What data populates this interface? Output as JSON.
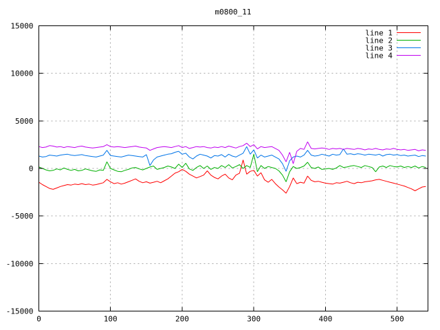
{
  "title": "m0800_11",
  "colors": {
    "background": "#ffffff",
    "border": "#000000",
    "text": "#000000",
    "grid": "#a8a8a8",
    "line1": "#ff0000",
    "line2": "#00b000",
    "line3": "#0074e8",
    "line4": "#c000f0"
  },
  "legend": {
    "position": "top-right",
    "entries": [
      "line 1",
      "line 2",
      "line 3",
      "line 4"
    ]
  },
  "chart_data": {
    "type": "line",
    "title": "m0800_11",
    "xlabel": "",
    "ylabel": "",
    "grid": true,
    "legend_position": "top-right",
    "xlim": [
      0,
      543
    ],
    "ylim": [
      -15000,
      15000
    ],
    "x_ticks": [
      0,
      100,
      200,
      300,
      400,
      500
    ],
    "y_ticks": [
      -15000,
      -10000,
      -5000,
      0,
      5000,
      10000,
      15000
    ],
    "x": [
      0,
      5,
      10,
      15,
      20,
      25,
      30,
      35,
      40,
      45,
      50,
      55,
      60,
      65,
      70,
      75,
      80,
      85,
      90,
      95,
      100,
      105,
      110,
      115,
      120,
      125,
      130,
      135,
      140,
      145,
      150,
      155,
      160,
      165,
      170,
      175,
      180,
      185,
      190,
      195,
      200,
      205,
      210,
      215,
      220,
      225,
      230,
      235,
      240,
      245,
      250,
      255,
      260,
      265,
      270,
      275,
      280,
      285,
      290,
      295,
      300,
      305,
      310,
      315,
      320,
      325,
      330,
      335,
      340,
      345,
      350,
      355,
      360,
      365,
      370,
      375,
      380,
      385,
      390,
      395,
      400,
      405,
      410,
      415,
      420,
      425,
      430,
      435,
      440,
      445,
      450,
      455,
      460,
      465,
      470,
      475,
      480,
      485,
      490,
      495,
      500,
      505,
      510,
      515,
      520,
      525,
      530,
      535,
      540
    ],
    "series": [
      {
        "name": "line 1",
        "color": "#ff0000",
        "values": [
          -1450,
          -1700,
          -1900,
          -2100,
          -2200,
          -2050,
          -1900,
          -1800,
          -1700,
          -1750,
          -1650,
          -1700,
          -1600,
          -1700,
          -1650,
          -1750,
          -1700,
          -1600,
          -1500,
          -1150,
          -1400,
          -1600,
          -1500,
          -1650,
          -1550,
          -1400,
          -1250,
          -1100,
          -1350,
          -1500,
          -1400,
          -1550,
          -1450,
          -1350,
          -1500,
          -1300,
          -1100,
          -800,
          -500,
          -350,
          -100,
          -300,
          -600,
          -800,
          -1000,
          -850,
          -700,
          -250,
          -700,
          -950,
          -1100,
          -800,
          -600,
          -1000,
          -1200,
          -700,
          -500,
          900,
          -600,
          -300,
          -200,
          -800,
          -450,
          -1200,
          -1450,
          -1150,
          -1600,
          -1950,
          -2250,
          -2600,
          -1900,
          -1000,
          -1600,
          -1450,
          -1550,
          -800,
          -1250,
          -1400,
          -1350,
          -1450,
          -1550,
          -1600,
          -1650,
          -1500,
          -1550,
          -1450,
          -1350,
          -1500,
          -1600,
          -1450,
          -1500,
          -1400,
          -1350,
          -1300,
          -1200,
          -1150,
          -1250,
          -1350,
          -1450,
          -1550,
          -1650,
          -1750,
          -1850,
          -2000,
          -2150,
          -2350,
          -2150,
          -1950,
          -1900
        ]
      },
      {
        "name": "line 2",
        "color": "#00b000",
        "values": [
          150,
          0,
          -150,
          -250,
          -200,
          -50,
          -150,
          50,
          -100,
          -200,
          -100,
          -250,
          -200,
          -50,
          -150,
          -250,
          -300,
          -150,
          -200,
          700,
          0,
          -150,
          -300,
          -350,
          -200,
          -100,
          50,
          100,
          -50,
          -150,
          0,
          150,
          250,
          -100,
          0,
          100,
          250,
          150,
          0,
          450,
          100,
          550,
          -50,
          -200,
          100,
          300,
          0,
          250,
          -100,
          100,
          0,
          300,
          100,
          400,
          50,
          200,
          400,
          0,
          300,
          100,
          1500,
          -350,
          300,
          0,
          200,
          100,
          0,
          -250,
          -700,
          -1400,
          -350,
          200,
          0,
          100,
          250,
          650,
          100,
          0,
          150,
          -100,
          -50,
          0,
          -100,
          50,
          300,
          100,
          150,
          250,
          300,
          200,
          100,
          300,
          200,
          100,
          -350,
          150,
          250,
          100,
          300,
          200,
          150,
          250,
          100,
          200,
          100,
          250,
          50,
          200,
          100
        ]
      },
      {
        "name": "line 3",
        "color": "#0074e8",
        "values": [
          1300,
          1200,
          1250,
          1400,
          1350,
          1300,
          1400,
          1450,
          1500,
          1400,
          1350,
          1400,
          1450,
          1350,
          1300,
          1250,
          1200,
          1300,
          1400,
          1900,
          1350,
          1300,
          1250,
          1200,
          1300,
          1400,
          1350,
          1300,
          1250,
          1200,
          1450,
          300,
          900,
          1200,
          1300,
          1400,
          1500,
          1550,
          1700,
          1800,
          1500,
          1600,
          1200,
          1000,
          1300,
          1500,
          1400,
          1300,
          1100,
          1350,
          1300,
          1450,
          1200,
          1500,
          1300,
          1200,
          1400,
          1600,
          2300,
          1500,
          1950,
          1100,
          1400,
          1200,
          1300,
          1400,
          1200,
          1000,
          500,
          -300,
          800,
          1200,
          1300,
          1200,
          1400,
          1900,
          1400,
          1300,
          1350,
          1500,
          1400,
          1300,
          1500,
          1400,
          1450,
          2050,
          1500,
          1550,
          1450,
          1550,
          1500,
          1400,
          1500,
          1450,
          1400,
          1500,
          1300,
          1450,
          1500,
          1400,
          1450,
          1350,
          1400,
          1300,
          1350,
          1400,
          1250,
          1350,
          1300
        ]
      },
      {
        "name": "line 4",
        "color": "#c000f0",
        "values": [
          2300,
          2200,
          2250,
          2400,
          2350,
          2250,
          2300,
          2200,
          2300,
          2250,
          2200,
          2300,
          2350,
          2250,
          2200,
          2150,
          2200,
          2250,
          2300,
          2500,
          2300,
          2250,
          2300,
          2250,
          2200,
          2250,
          2300,
          2350,
          2250,
          2200,
          2150,
          1900,
          2050,
          2200,
          2250,
          2300,
          2250,
          2200,
          2300,
          2400,
          2200,
          2300,
          2100,
          2200,
          2300,
          2250,
          2300,
          2200,
          2150,
          2250,
          2200,
          2300,
          2200,
          2350,
          2250,
          2150,
          2300,
          2400,
          2650,
          2300,
          2500,
          2050,
          2300,
          2200,
          2250,
          2300,
          2100,
          1900,
          1400,
          700,
          1700,
          500,
          1800,
          2100,
          2000,
          2800,
          2100,
          2050,
          2100,
          2150,
          2100,
          2000,
          2100,
          2050,
          2100,
          2000,
          2100,
          2050,
          2000,
          2100,
          2050,
          1950,
          2050,
          2000,
          2100,
          2000,
          1950,
          2050,
          2000,
          2100,
          2000,
          1950,
          2000,
          1900,
          1950,
          2000,
          1850,
          1950,
          1900
        ]
      }
    ]
  }
}
